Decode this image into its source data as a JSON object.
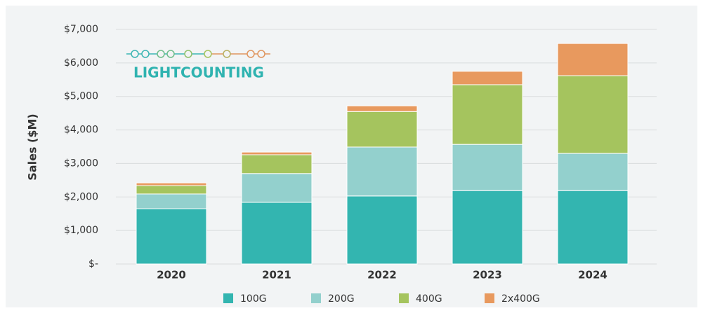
{
  "chart_data": {
    "type": "stacked_bar",
    "y_label": "Sales ($M)",
    "logo": "LIGHTCOUNTING",
    "categories": [
      "2020",
      "2021",
      "2022",
      "2023",
      "2024"
    ],
    "series": [
      {
        "name": "100G",
        "color": "#33b5b0",
        "values": [
          1650,
          1840,
          2030,
          2190,
          2190
        ]
      },
      {
        "name": "200G",
        "color": "#93d0cd",
        "values": [
          440,
          860,
          1460,
          1380,
          1110
        ]
      },
      {
        "name": "400G",
        "color": "#a5c45e",
        "values": [
          250,
          560,
          1060,
          1780,
          2320
        ]
      },
      {
        "name": "2x400G",
        "color": "#e8995e",
        "values": [
          80,
          80,
          170,
          400,
          960
        ]
      }
    ],
    "ylim": [
      0,
      7000
    ],
    "yticks": [
      {
        "value": 0,
        "label": "$-"
      },
      {
        "value": 1000,
        "label": "$1,000"
      },
      {
        "value": 2000,
        "label": "$2,000"
      },
      {
        "value": 3000,
        "label": "$3,000"
      },
      {
        "value": 4000,
        "label": "$4,000"
      },
      {
        "value": 5000,
        "label": "$5,000"
      },
      {
        "value": 6000,
        "label": "$6,000"
      },
      {
        "value": 7000,
        "label": "$7,000"
      }
    ],
    "grid": true
  }
}
